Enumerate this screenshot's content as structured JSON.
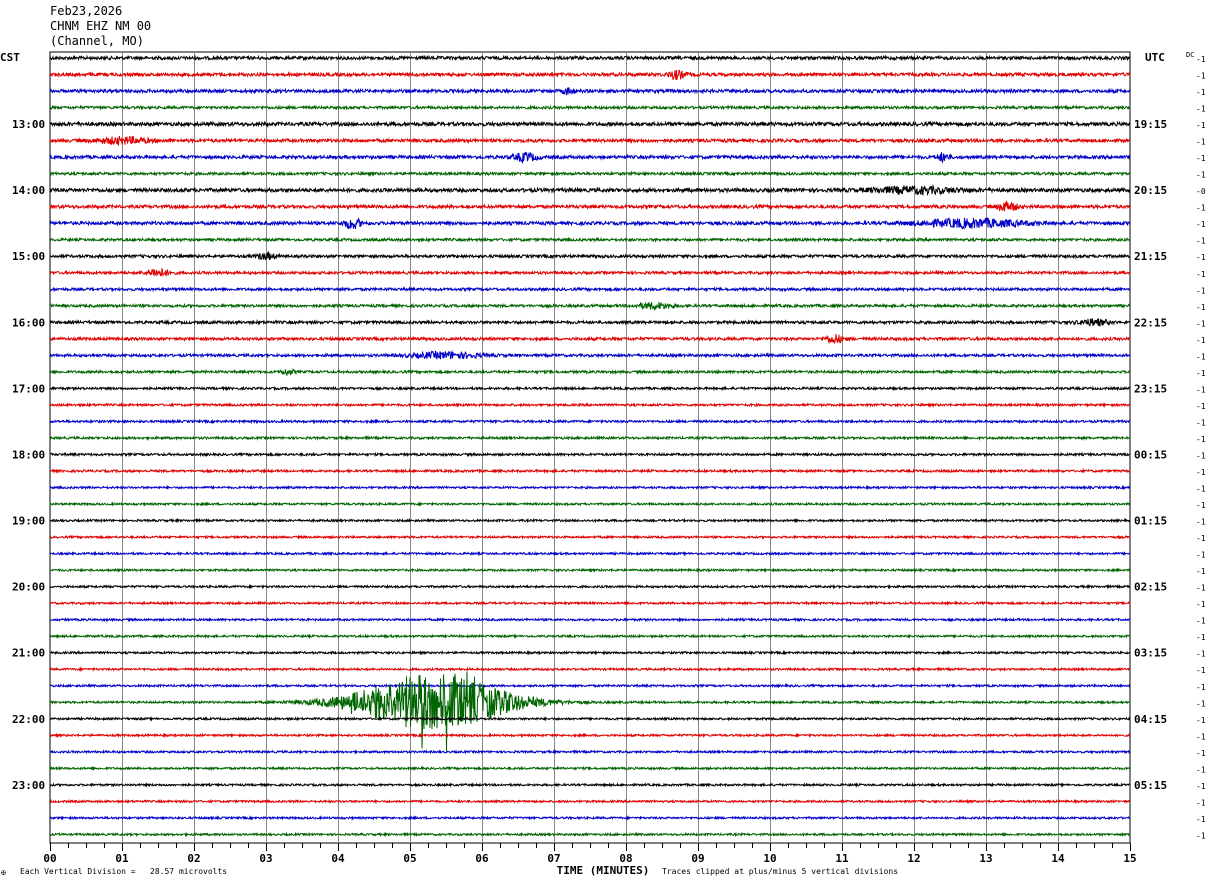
{
  "header": {
    "date": "Feb23,2026",
    "station": "CHNM EHZ NM 00",
    "location": "(Channel, MO)"
  },
  "left_axis_title": "CST",
  "right_axis_title": "UTC",
  "dc_header": "DC",
  "footer": {
    "scale_note": "Each Vertical Division =   28.57 microvolts",
    "clip_note": "Traces clipped at plus/minus 5 vertical divisions",
    "logo_glyph": "✠"
  },
  "colors": {
    "cycle": [
      "#000000",
      "#e00000",
      "#0000c8",
      "#006400"
    ],
    "grid": "#888888"
  },
  "chart_data": {
    "type": "line",
    "title": "",
    "xlabel": "TIME (MINUTES)",
    "xlim": [
      0,
      15
    ],
    "x_ticks": [
      "00",
      "01",
      "02",
      "03",
      "04",
      "05",
      "06",
      "07",
      "08",
      "09",
      "10",
      "11",
      "12",
      "13",
      "14",
      "15"
    ],
    "trace_count": 48,
    "traces_per_hour": 4,
    "left_hour_labels": [
      "13:00",
      "14:00",
      "15:00",
      "16:00",
      "17:00",
      "18:00",
      "19:00",
      "20:00",
      "21:00",
      "22:00",
      "23:00"
    ],
    "right_hour_labels": [
      "19:15",
      "20:15",
      "21:15",
      "22:15",
      "23:15",
      "00:15",
      "01:15",
      "02:15",
      "03:15",
      "04:15",
      "05:15"
    ],
    "label_first_trace_index": 4,
    "dc_offsets": [
      "-1",
      "-1",
      "-1",
      "-1",
      "-1",
      "-1",
      "-1",
      "-1",
      "-0",
      "-1",
      "-1",
      "-1",
      "-1",
      "-1",
      "-1",
      "-1",
      "-1",
      "-1",
      "-1",
      "-1",
      "-1",
      "-1",
      "-1",
      "-1",
      "-1",
      "-1",
      "-1",
      "-1",
      "-1",
      "-1",
      "-1",
      "-1",
      "-1",
      "-1",
      "-1",
      "-1",
      "-1",
      "-1",
      "-1",
      "-1",
      "-1",
      "-1",
      "-1",
      "-1",
      "-1",
      "-1",
      "-1",
      "-1"
    ],
    "noise_levels": [
      1.6,
      1.6,
      1.6,
      1.3,
      1.8,
      1.6,
      1.6,
      1.3,
      1.8,
      1.6,
      1.6,
      1.3,
      1.4,
      1.3,
      1.3,
      1.3,
      1.4,
      1.4,
      1.3,
      1.2,
      1.1,
      1.1,
      1.1,
      1.1,
      1.1,
      1.1,
      1.0,
      1.0,
      1.0,
      1.0,
      1.0,
      1.0,
      1.0,
      1.0,
      1.0,
      1.0,
      1.0,
      1.0,
      1.0,
      1.0,
      1.0,
      1.0,
      1.0,
      1.0,
      1.0,
      1.0,
      1.0,
      1.0
    ],
    "bursts": [
      {
        "trace": 1,
        "minute": 8.7,
        "width_min": 0.3,
        "amplitude": 4
      },
      {
        "trace": 2,
        "minute": 7.2,
        "width_min": 0.2,
        "amplitude": 3
      },
      {
        "trace": 5,
        "minute": 1.0,
        "width_min": 0.9,
        "amplitude": 3
      },
      {
        "trace": 6,
        "minute": 6.6,
        "width_min": 0.4,
        "amplitude": 4
      },
      {
        "trace": 6,
        "minute": 12.4,
        "width_min": 0.2,
        "amplitude": 4
      },
      {
        "trace": 8,
        "minute": 12.0,
        "width_min": 1.5,
        "amplitude": 3
      },
      {
        "trace": 9,
        "minute": 13.3,
        "width_min": 0.3,
        "amplitude": 5
      },
      {
        "trace": 10,
        "minute": 4.2,
        "width_min": 0.3,
        "amplitude": 5
      },
      {
        "trace": 10,
        "minute": 12.8,
        "width_min": 1.8,
        "amplitude": 4
      },
      {
        "trace": 12,
        "minute": 3.0,
        "width_min": 0.3,
        "amplitude": 3
      },
      {
        "trace": 13,
        "minute": 1.5,
        "width_min": 0.4,
        "amplitude": 4
      },
      {
        "trace": 15,
        "minute": 8.4,
        "width_min": 0.6,
        "amplitude": 3
      },
      {
        "trace": 16,
        "minute": 14.5,
        "width_min": 0.5,
        "amplitude": 3
      },
      {
        "trace": 17,
        "minute": 10.9,
        "width_min": 0.3,
        "amplitude": 4
      },
      {
        "trace": 18,
        "minute": 5.5,
        "width_min": 1.2,
        "amplitude": 3
      },
      {
        "trace": 19,
        "minute": 3.3,
        "width_min": 0.2,
        "amplitude": 3
      },
      {
        "trace": 39,
        "minute": 5.3,
        "width_min": 2.6,
        "amplitude": 28
      }
    ]
  }
}
